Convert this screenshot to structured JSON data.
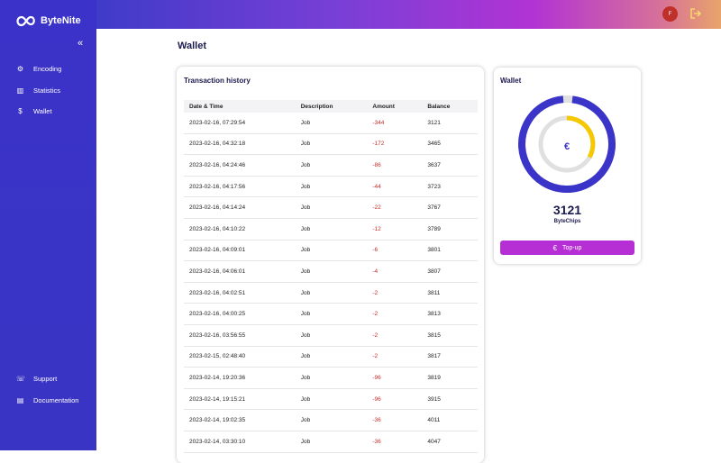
{
  "sidebar": {
    "brand": "ByteNite",
    "nav": [
      "Encoding",
      "Statistics",
      "Wallet"
    ],
    "footer_nav": [
      "Support",
      "Documentation"
    ]
  },
  "header": {
    "avatar": "F"
  },
  "page": {
    "title": "Wallet"
  },
  "transactions": {
    "title": "Transaction history",
    "columns": [
      "Date & Time",
      "Description",
      "Amount",
      "Balance"
    ],
    "rows": [
      [
        "2023-02-16, 07:29:54",
        "Job",
        "-344",
        "3121"
      ],
      [
        "2023-02-16, 04:32:18",
        "Job",
        "-172",
        "3465"
      ],
      [
        "2023-02-16, 04:24:46",
        "Job",
        "-86",
        "3637"
      ],
      [
        "2023-02-16, 04:17:56",
        "Job",
        "-44",
        "3723"
      ],
      [
        "2023-02-16, 04:14:24",
        "Job",
        "-22",
        "3767"
      ],
      [
        "2023-02-16, 04:10:22",
        "Job",
        "-12",
        "3789"
      ],
      [
        "2023-02-16, 04:09:01",
        "Job",
        "-6",
        "3801"
      ],
      [
        "2023-02-16, 04:06:01",
        "Job",
        "-4",
        "3807"
      ],
      [
        "2023-02-16, 04:02:51",
        "Job",
        "-2",
        "3811"
      ],
      [
        "2023-02-16, 04:00:25",
        "Job",
        "-2",
        "3813"
      ],
      [
        "2023-02-16, 03:56:55",
        "Job",
        "-2",
        "3815"
      ],
      [
        "2023-02-15, 02:48:40",
        "Job",
        "-2",
        "3817"
      ],
      [
        "2023-02-14, 19:20:36",
        "Job",
        "-96",
        "3819"
      ],
      [
        "2023-02-14, 19:15:21",
        "Job",
        "-96",
        "3915"
      ],
      [
        "2023-02-14, 19:02:35",
        "Job",
        "-36",
        "4011"
      ],
      [
        "2023-02-14, 03:30:10",
        "Job",
        "-36",
        "4047"
      ]
    ]
  },
  "wallet": {
    "title": "Wallet",
    "balance": "3121",
    "unit": "ByteChips",
    "button": "Top-up"
  }
}
